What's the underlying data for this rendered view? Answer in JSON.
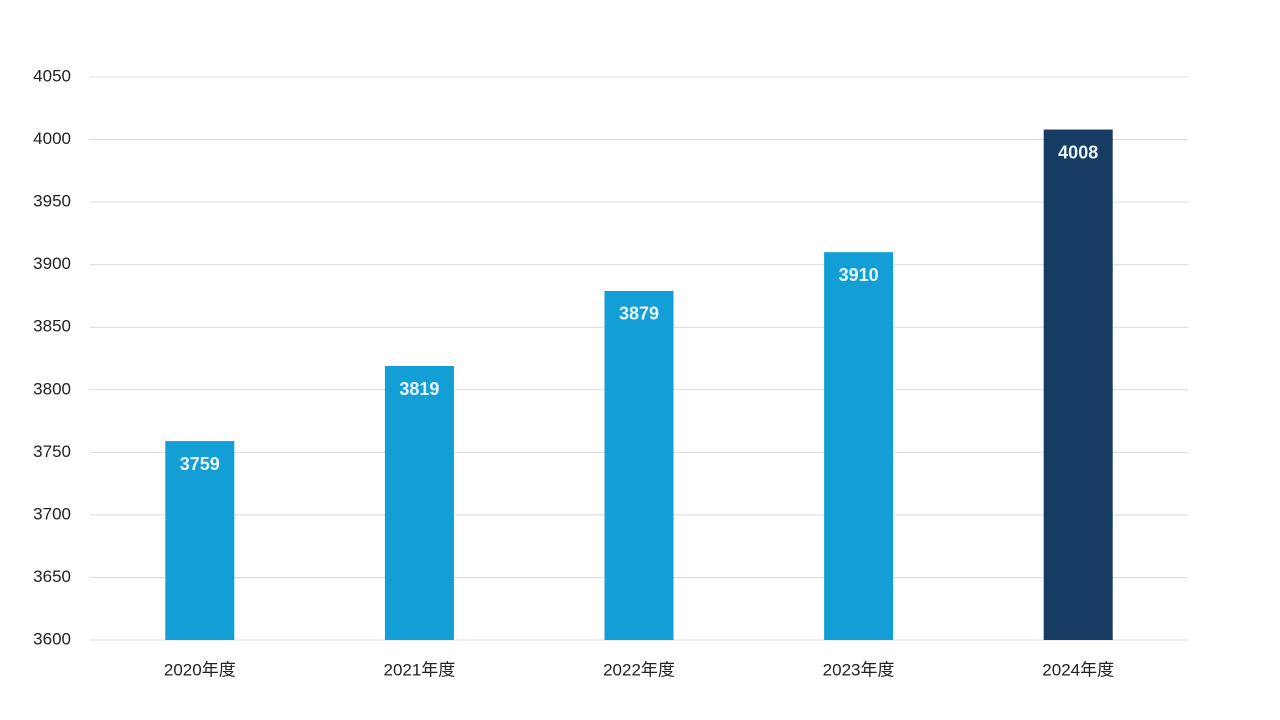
{
  "chart_data": {
    "type": "bar",
    "categories": [
      "2020年度",
      "2021年度",
      "2022年度",
      "2023年度",
      "2024年度"
    ],
    "values": [
      3759,
      3819,
      3879,
      3910,
      4008
    ],
    "colors": [
      "#139fd6",
      "#139fd6",
      "#139fd6",
      "#139fd6",
      "#173c63"
    ],
    "ylim": [
      3600,
      4050
    ],
    "yticks": [
      3600,
      3650,
      3700,
      3750,
      3800,
      3850,
      3900,
      3950,
      4000,
      4050
    ],
    "grid": true
  }
}
